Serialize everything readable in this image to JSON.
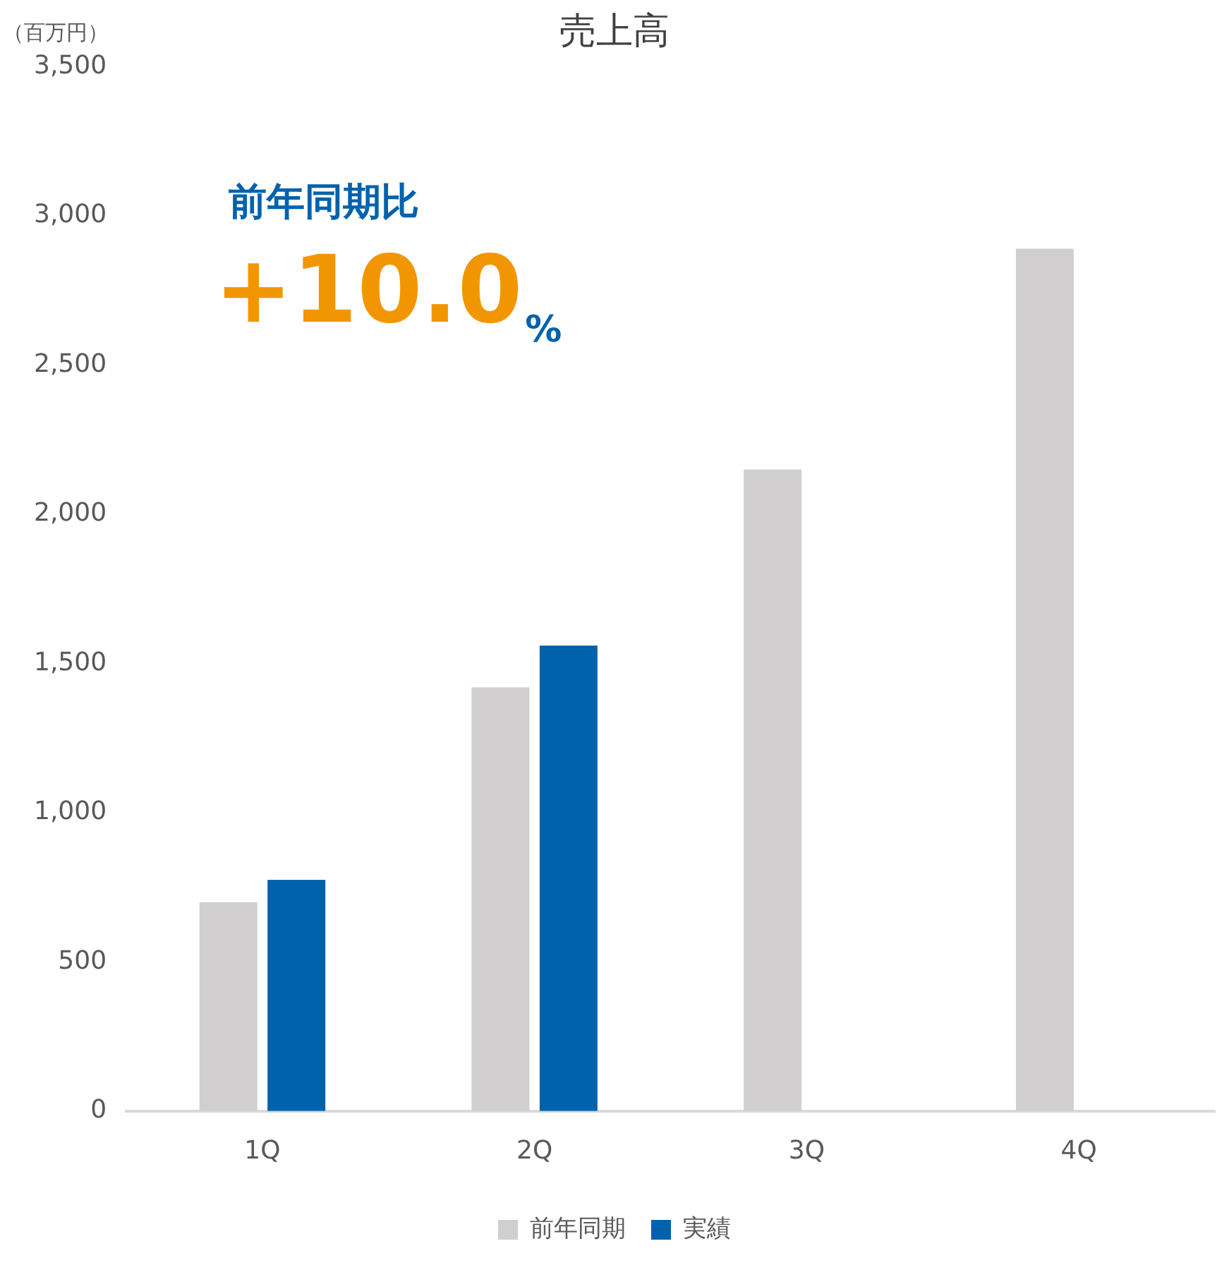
{
  "chart_data": {
    "type": "bar",
    "title": "売上高",
    "ylabel": "（百万円）",
    "categories": [
      "1Q",
      "2Q",
      "3Q",
      "4Q"
    ],
    "series": [
      {
        "name": "前年同期",
        "color": "#d0cece",
        "values": [
          700,
          1420,
          2150,
          2890
        ]
      },
      {
        "name": "実績",
        "color": "#0062ac",
        "values": [
          775,
          1560,
          null,
          null
        ]
      }
    ],
    "ylim": [
      0,
      3500
    ],
    "yticks": [
      0,
      500,
      {
        "value": 1000,
        "label": "1,000"
      },
      {
        "value": 1500,
        "label": "1,500"
      },
      {
        "value": 2000,
        "label": "2,000"
      },
      {
        "value": 2500,
        "label": "2,500"
      },
      {
        "value": 3000,
        "label": "3,000"
      },
      {
        "value": 3500,
        "label": "3,500"
      }
    ],
    "grid": false,
    "legend": "bottom",
    "annotations": [
      "前年同期比",
      "+10.0%"
    ]
  }
}
